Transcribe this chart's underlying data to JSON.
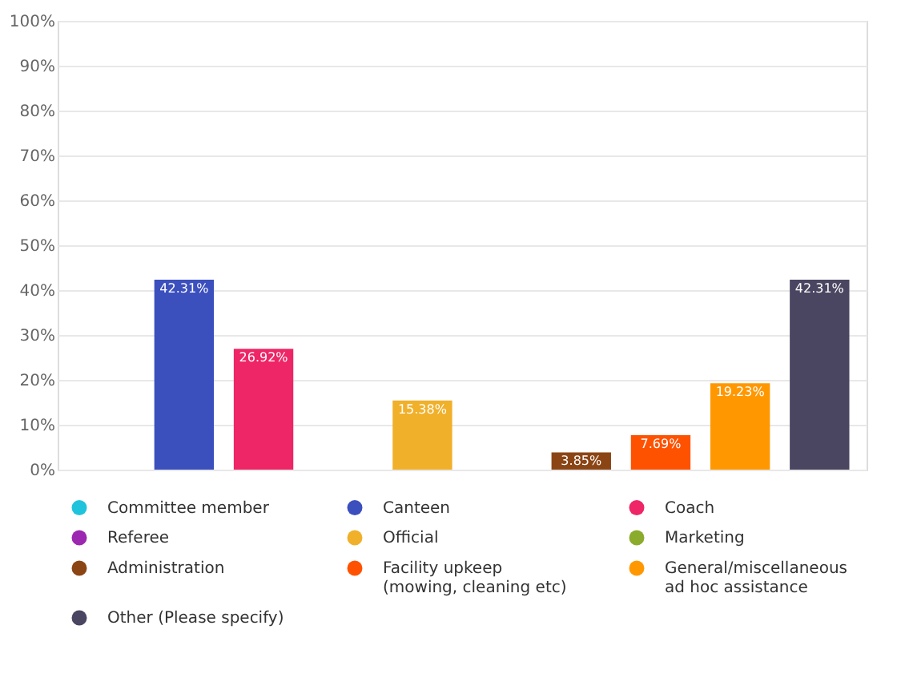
{
  "chart_data": {
    "type": "bar",
    "categories": [
      null
    ],
    "series": [
      {
        "name": "Committee member",
        "color": "#1fc3dc",
        "values": [
          0
        ],
        "value_labels": [
          null
        ]
      },
      {
        "name": "Canteen",
        "color": "#3b4fbd",
        "values": [
          42.31
        ],
        "value_labels": [
          "42.31%"
        ]
      },
      {
        "name": "Coach",
        "color": "#ee2566",
        "values": [
          26.92
        ],
        "value_labels": [
          "26.92%"
        ]
      },
      {
        "name": "Referee",
        "color": "#9c27b0",
        "values": [
          0
        ],
        "value_labels": [
          null
        ]
      },
      {
        "name": "Official",
        "color": "#f0b02a",
        "values": [
          15.38
        ],
        "value_labels": [
          "15.38%"
        ]
      },
      {
        "name": "Marketing",
        "color": "#8bab2c",
        "values": [
          0
        ],
        "value_labels": [
          null
        ]
      },
      {
        "name": "Administration",
        "color": "#8b4515",
        "values": [
          3.85
        ],
        "value_labels": [
          "3.85%"
        ]
      },
      {
        "name": "Facility upkeep (mowing, cleaning etc)",
        "color": "#ff5200",
        "values": [
          7.69
        ],
        "value_labels": [
          "7.69%"
        ]
      },
      {
        "name": "General/miscellaneous ad hoc assistance",
        "color": "#ff9800",
        "values": [
          19.23
        ],
        "value_labels": [
          "19.23%"
        ]
      },
      {
        "name": "Other (Please specify)",
        "color": "#4a4560",
        "values": [
          42.31
        ],
        "value_labels": [
          "42.31%"
        ]
      }
    ],
    "ylim": [
      0,
      100
    ],
    "yticks": [
      {
        "value": 0,
        "label": "0%"
      },
      {
        "value": 10,
        "label": "10%"
      },
      {
        "value": 20,
        "label": "20%"
      },
      {
        "value": 30,
        "label": "30%"
      },
      {
        "value": 40,
        "label": "40%"
      },
      {
        "value": 50,
        "label": "50%"
      },
      {
        "value": 60,
        "label": "60%"
      },
      {
        "value": 70,
        "label": "70%"
      },
      {
        "value": 80,
        "label": "80%"
      },
      {
        "value": 90,
        "label": "90%"
      },
      {
        "value": 100,
        "label": "100%"
      }
    ],
    "grid": "y",
    "legend": "bottom",
    "tick_labels": "y"
  }
}
